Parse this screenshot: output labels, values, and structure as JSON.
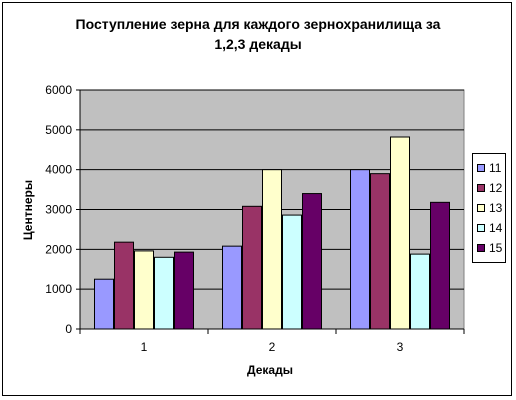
{
  "chart_data": {
    "type": "bar",
    "title": "Поступление зерна для каждого зернохранилища за 1,2,3 декады",
    "title_lines": [
      "Поступление зерна для каждого зернохранилища за",
      "1,2,3 декады"
    ],
    "xlabel": "Декады",
    "ylabel": "Центнеры",
    "categories": [
      "1",
      "2",
      "3"
    ],
    "ylim": [
      0,
      6000
    ],
    "yticks": [
      "0",
      "1000",
      "2000",
      "3000",
      "4000",
      "5000",
      "6000"
    ],
    "grid": true,
    "legend_position": "right",
    "plot_background": "#c0c0c0",
    "series": [
      {
        "name": "11",
        "color": "#9999ff",
        "values": [
          1250,
          2080,
          4000
        ]
      },
      {
        "name": "12",
        "color": "#993366",
        "values": [
          2180,
          3080,
          3900
        ]
      },
      {
        "name": "13",
        "color": "#ffffcc",
        "values": [
          1960,
          4000,
          4820
        ]
      },
      {
        "name": "14",
        "color": "#ccffff",
        "values": [
          1800,
          2860,
          1880
        ]
      },
      {
        "name": "15",
        "color": "#660066",
        "values": [
          1930,
          3400,
          3180
        ]
      }
    ]
  }
}
